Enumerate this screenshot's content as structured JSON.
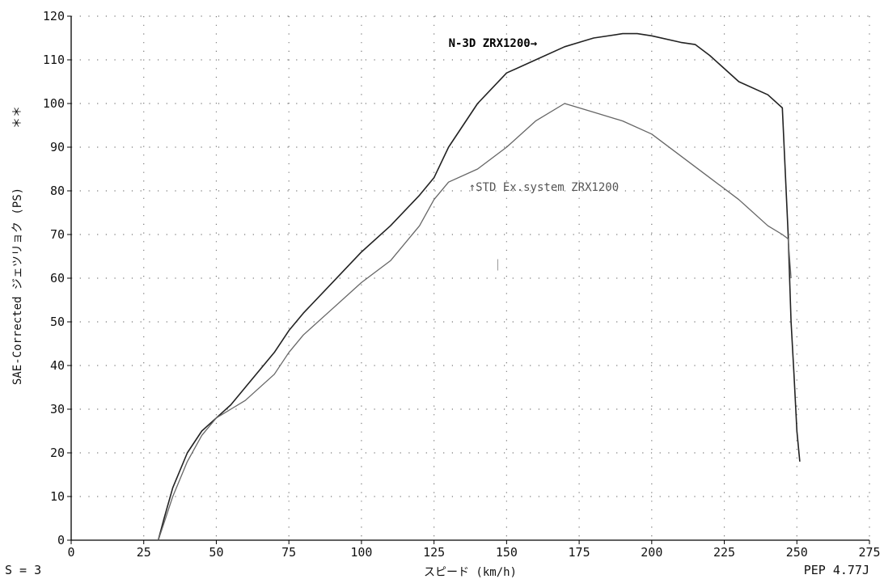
{
  "chart_data": {
    "type": "line",
    "xlabel": "スピード (km/h)",
    "ylabel": "SAE-Corrected ジェツリョク (PS)",
    "y_marker": "＊＊",
    "xlim": [
      0,
      275
    ],
    "ylim": [
      0,
      120
    ],
    "x_ticks": [
      "0",
      "25",
      "50",
      "75",
      "100",
      "125",
      "150",
      "175",
      "200",
      "225",
      "250",
      "275"
    ],
    "y_ticks": [
      "0",
      "10",
      "20",
      "30",
      "40",
      "50",
      "60",
      "70",
      "80",
      "90",
      "100",
      "110",
      "120"
    ],
    "grid": true,
    "series": [
      {
        "name": "N-3D ZRX1200→",
        "color": "#222222",
        "x": [
          30,
          32,
          35,
          40,
          45,
          50,
          55,
          60,
          70,
          75,
          80,
          90,
          100,
          110,
          120,
          125,
          130,
          140,
          150,
          160,
          170,
          175,
          180,
          190,
          195,
          200,
          210,
          215,
          220,
          230,
          240,
          245,
          247,
          248,
          249,
          250,
          251
        ],
        "y": [
          0,
          5,
          12,
          20,
          25,
          28,
          31,
          35,
          43,
          48,
          52,
          59,
          66,
          72,
          79,
          83,
          90,
          100,
          107,
          110,
          113,
          114,
          115,
          116,
          116,
          115.5,
          114,
          113.5,
          111,
          105,
          102,
          99,
          70,
          50,
          38,
          25,
          18
        ]
      },
      {
        "name": "↑STD Ex.system ZRX1200",
        "color": "#666666",
        "x": [
          30,
          32,
          35,
          40,
          45,
          50,
          55,
          60,
          70,
          75,
          80,
          90,
          100,
          110,
          120,
          125,
          130,
          140,
          150,
          160,
          170,
          175,
          180,
          190,
          200,
          210,
          220,
          230,
          240,
          245,
          247,
          248
        ],
        "y": [
          0,
          4,
          10,
          18,
          24,
          28,
          30,
          32,
          38,
          43,
          47,
          53,
          59,
          64,
          72,
          78,
          82,
          85,
          90,
          96,
          100,
          99,
          98,
          96,
          93,
          88,
          83,
          78,
          72,
          70,
          69,
          60
        ]
      }
    ],
    "annotations": [
      {
        "text": "N-3D ZRX1200→",
        "x": 130,
        "y": 113
      },
      {
        "text": "↑STD Ex.system ZRX1200",
        "x": 137,
        "y": 80
      },
      {
        "text": "｜",
        "x": 145,
        "y": 62
      }
    ]
  },
  "footer": {
    "left": "S = 3",
    "right": "PEP 4.77J"
  }
}
